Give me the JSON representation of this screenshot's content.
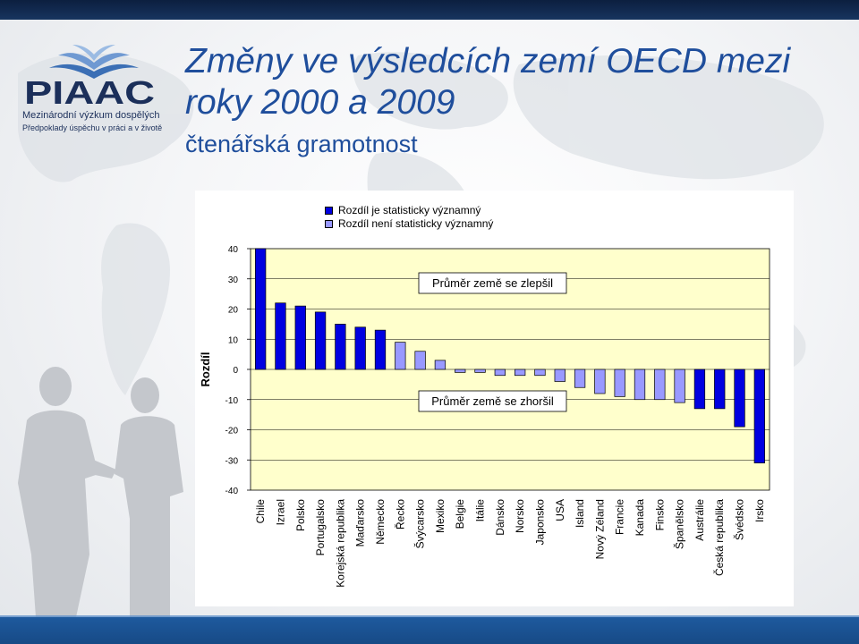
{
  "logo": {
    "brand": "PIAAC",
    "tagline1": "Mezinárodní výzkum dospělých",
    "tagline2": "Předpoklady úspěchu v práci a v životě"
  },
  "title": "Změny ve výsledcích zemí OECD mezi roky 2000 a 2009",
  "subtitle": "čtenářská gramotnost",
  "colors": {
    "significant": "#0000e0",
    "not_significant": "#9999ff",
    "plot_background": "#ffffcc",
    "title": "#1f4e9c"
  },
  "chart_data": {
    "type": "bar",
    "ylabel": "Rozdíl",
    "ylim": [
      -40,
      40
    ],
    "yticks": [
      40,
      30,
      20,
      10,
      0,
      -10,
      -20,
      -30,
      -40
    ],
    "legend": [
      {
        "label": "Rozdíl je statisticky významný",
        "key": "significant"
      },
      {
        "label": "Rozdíl není statisticky významný",
        "key": "not_significant"
      }
    ],
    "annotations": [
      "Průměr země se zlepšil",
      "Průměr země se zhoršil"
    ],
    "categories": [
      "Chile",
      "Izrael",
      "Polsko",
      "Portugalsko",
      "Korejská republika",
      "Maďarsko",
      "Německo",
      "Řecko",
      "Švýcarsko",
      "Mexiko",
      "Belgie",
      "Itálie",
      "Dánsko",
      "Norsko",
      "Japonsko",
      "USA",
      "Island",
      "Nový Zéland",
      "Francie",
      "Kanada",
      "Finsko",
      "Španělsko",
      "Austrálie",
      "Česká republika",
      "Švédsko",
      "Irsko"
    ],
    "values": [
      40,
      22,
      21,
      19,
      15,
      14,
      13,
      9,
      6,
      3,
      -1,
      -1,
      -2,
      -2,
      -2,
      -4,
      -6,
      -8,
      -9,
      -10,
      -10,
      -11,
      -13,
      -13,
      -19,
      -31
    ],
    "significant": [
      true,
      true,
      true,
      true,
      true,
      true,
      true,
      false,
      false,
      false,
      false,
      false,
      false,
      false,
      false,
      false,
      false,
      false,
      false,
      false,
      false,
      false,
      true,
      true,
      true,
      true
    ]
  }
}
